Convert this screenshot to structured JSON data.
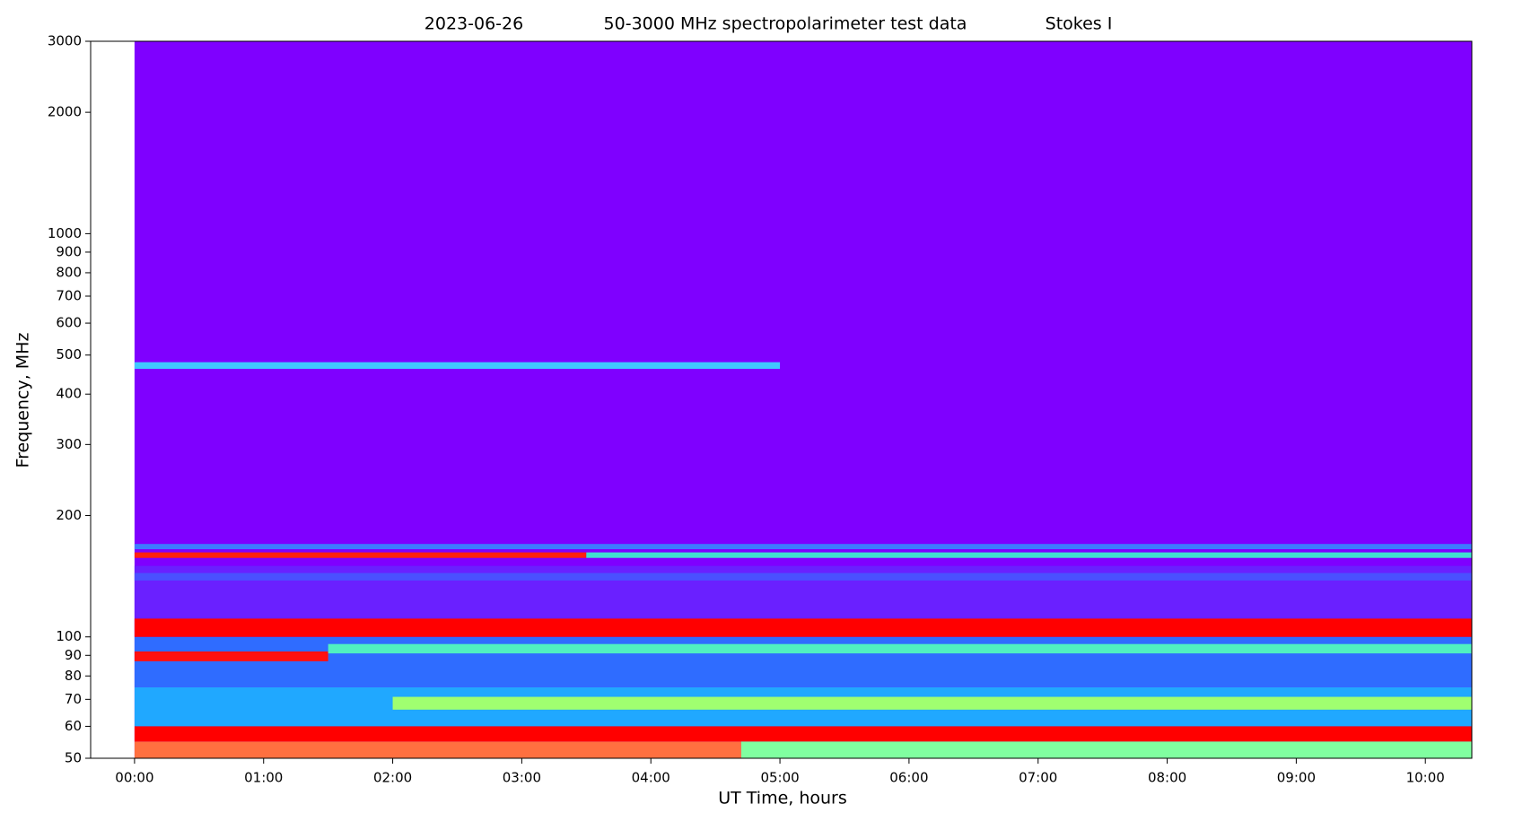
{
  "chart_data": {
    "type": "spectrogram",
    "title_parts": [
      "2023-06-26",
      "50-3000 MHz spectropolarimeter test data",
      "Stokes I"
    ],
    "xlabel": "UT Time, hours",
    "ylabel": "Frequency, MHz",
    "xlim": [
      -0.34,
      10.36
    ],
    "ylim": [
      50,
      3000
    ],
    "log_y": true,
    "xticks": [
      {
        "value": 0,
        "label": "00:00"
      },
      {
        "value": 1,
        "label": "01:00"
      },
      {
        "value": 2,
        "label": "02:00"
      },
      {
        "value": 3,
        "label": "03:00"
      },
      {
        "value": 4,
        "label": "04:00"
      },
      {
        "value": 5,
        "label": "05:00"
      },
      {
        "value": 6,
        "label": "06:00"
      },
      {
        "value": 7,
        "label": "07:00"
      },
      {
        "value": 8,
        "label": "08:00"
      },
      {
        "value": 9,
        "label": "09:00"
      },
      {
        "value": 10,
        "label": "10:00"
      }
    ],
    "yticks": [
      50,
      60,
      70,
      80,
      90,
      100,
      200,
      300,
      400,
      500,
      600,
      700,
      800,
      900,
      1000,
      2000,
      3000
    ],
    "bands": [
      {
        "x": [
          0,
          10.36
        ],
        "y": [
          50,
          3000
        ],
        "color": "#7f00ff"
      },
      {
        "x": [
          0,
          10.36
        ],
        "y": [
          100,
          150
        ],
        "color": "#6a20ff"
      },
      {
        "x": [
          0,
          5
        ],
        "y": [
          462,
          480
        ],
        "color": "#40c8ff"
      },
      {
        "x": [
          0,
          10.36
        ],
        "y": [
          165,
          170
        ],
        "color": "#3d7bff"
      },
      {
        "x": [
          0,
          3.5
        ],
        "y": [
          157,
          162
        ],
        "color": "#ff2010"
      },
      {
        "x": [
          3.5,
          10.36
        ],
        "y": [
          157,
          162
        ],
        "color": "#40e0d0"
      },
      {
        "x": [
          0,
          10.36
        ],
        "y": [
          138,
          144
        ],
        "color": "#4a50ff"
      },
      {
        "x": [
          0,
          10.36
        ],
        "y": [
          75,
          100
        ],
        "color": "#2f6cff"
      },
      {
        "x": [
          0,
          10.36
        ],
        "y": [
          100,
          111
        ],
        "color": "#ff0000"
      },
      {
        "x": [
          0,
          1.5
        ],
        "y": [
          87,
          92
        ],
        "color": "#ff1010"
      },
      {
        "x": [
          1.5,
          10.36
        ],
        "y": [
          91,
          96
        ],
        "color": "#50f0c0"
      },
      {
        "x": [
          0,
          10.36
        ],
        "y": [
          60,
          75
        ],
        "color": "#20a8ff"
      },
      {
        "x": [
          2,
          10.36
        ],
        "y": [
          66,
          71
        ],
        "color": "#a0ff70"
      },
      {
        "x": [
          0,
          10.36
        ],
        "y": [
          55,
          60
        ],
        "color": "#ff0000"
      },
      {
        "x": [
          0,
          4.7
        ],
        "y": [
          50,
          55
        ],
        "color": "#ff7040"
      },
      {
        "x": [
          4.7,
          10.36
        ],
        "y": [
          50,
          55
        ],
        "color": "#80ffa0"
      }
    ]
  }
}
